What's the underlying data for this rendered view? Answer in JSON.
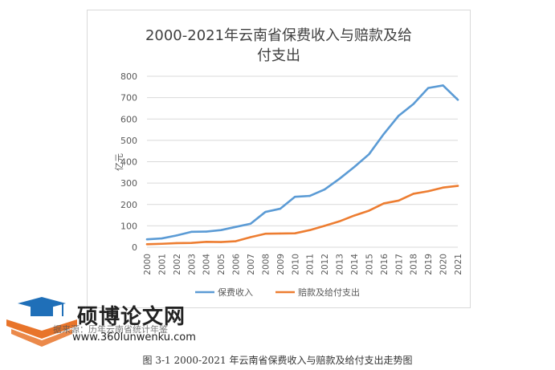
{
  "chart_data": {
    "type": "line",
    "title_line1": "2000-2021年云南省保费收入与赔款及给",
    "title_line2": "付支出",
    "ylabel": "亿元",
    "ylim": [
      0,
      800
    ],
    "yticks": [
      0,
      100,
      200,
      300,
      400,
      500,
      600,
      700,
      800
    ],
    "grid": true,
    "legend_position": "bottom",
    "categories": [
      "2000",
      "2001",
      "2002",
      "2003",
      "2004",
      "2005",
      "2006",
      "2007",
      "2008",
      "2009",
      "2010",
      "2011",
      "2012",
      "2013",
      "2014",
      "2015",
      "2016",
      "2017",
      "2018",
      "2019",
      "2020",
      "2021"
    ],
    "series": [
      {
        "name": "保费收入",
        "color": "#5B9BD5",
        "values": [
          37,
          41,
          55,
          72,
          73,
          80,
          95,
          110,
          165,
          180,
          236,
          240,
          270,
          320,
          375,
          435,
          530,
          615,
          670,
          745,
          757,
          690
        ]
      },
      {
        "name": "赔款及给付支出",
        "color": "#ED7D31",
        "values": [
          14,
          16,
          19,
          20,
          25,
          24,
          28,
          47,
          63,
          64,
          65,
          80,
          100,
          121,
          148,
          171,
          205,
          218,
          250,
          262,
          279,
          287
        ]
      }
    ]
  },
  "watermark": {
    "main": "硕博论文网",
    "url": "www.360lunwenku.com",
    "source": "据来源：历年云南省统计年鉴"
  },
  "caption": "图 3-1   2000-2021 年云南省保费收入与赔款及给付支出走势图"
}
